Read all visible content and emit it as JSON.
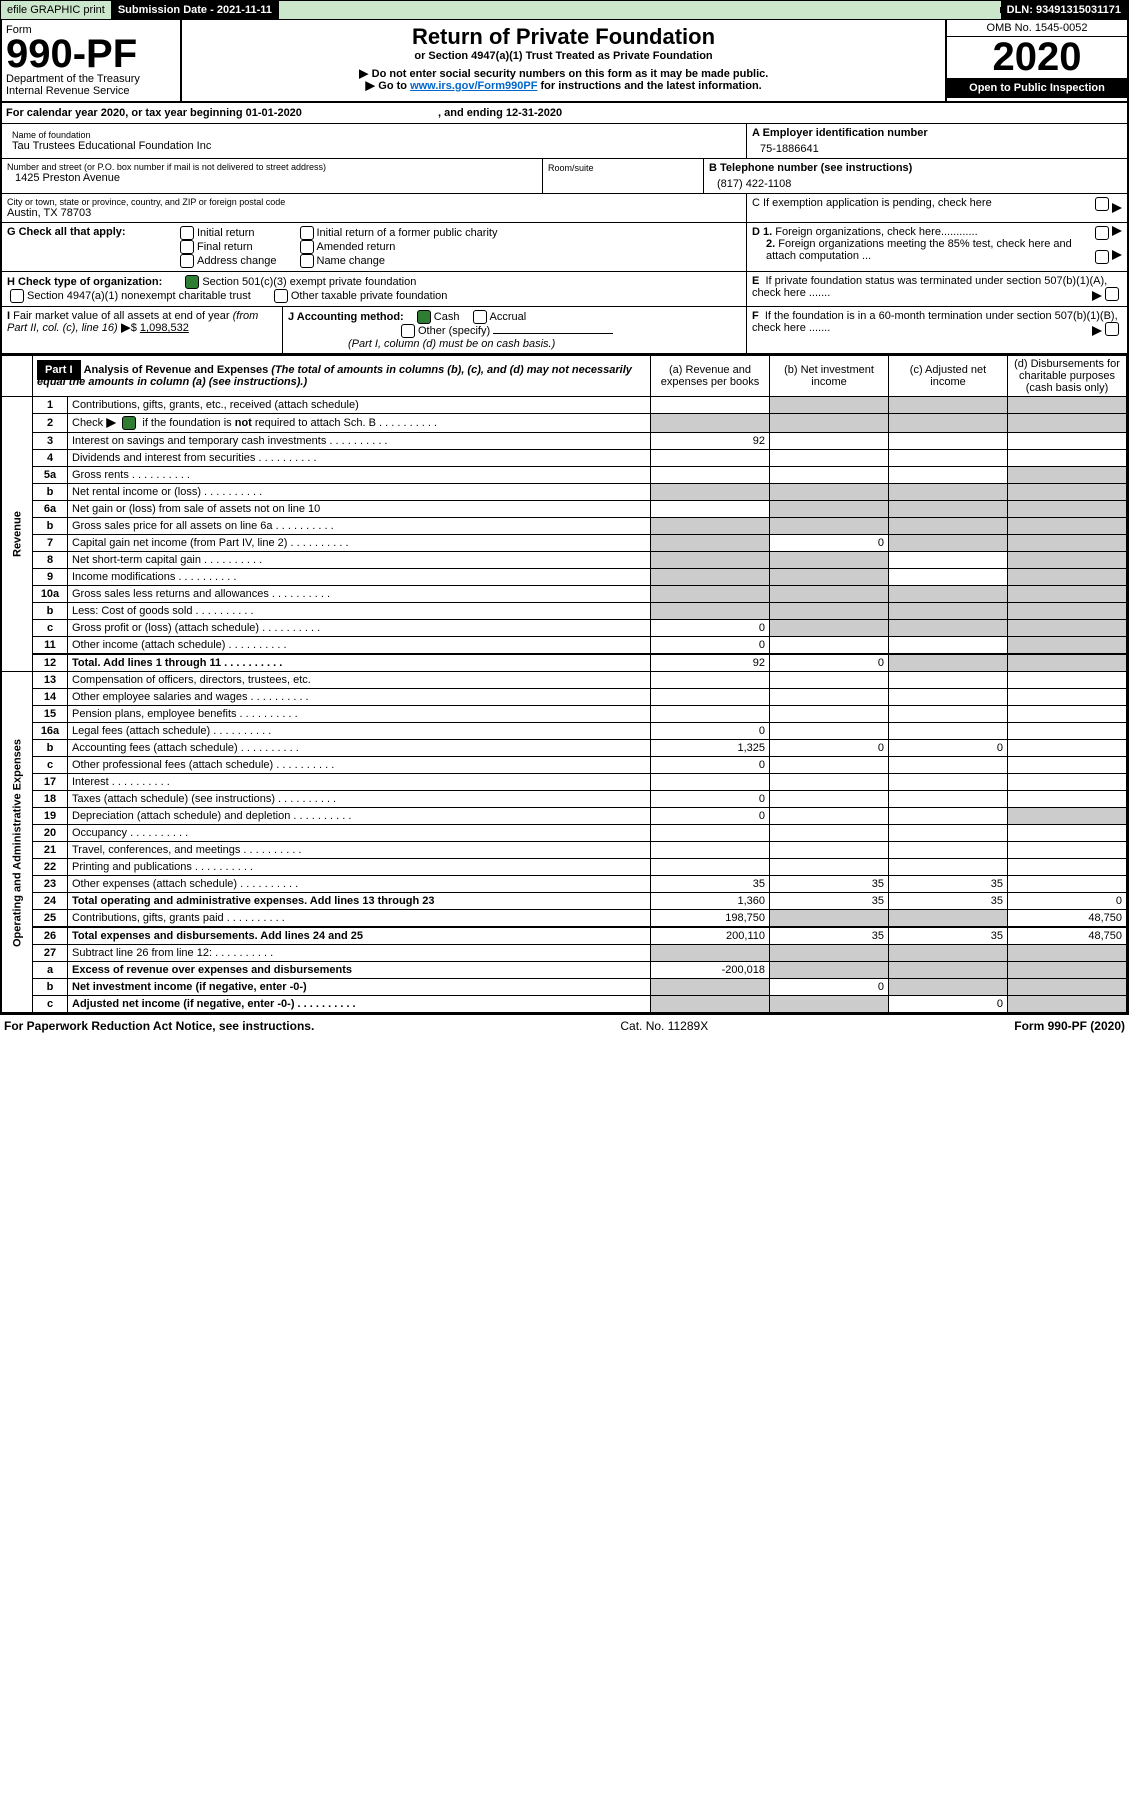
{
  "top": {
    "efile": "efile GRAPHIC print",
    "sub_label": "Submission Date - 2021-11-11",
    "dln_label": "DLN: 93491315031171",
    "omb": "OMB No. 1545-0052",
    "form": "Form",
    "form_no": "990-PF",
    "dept": "Department of the Treasury",
    "irs": "Internal Revenue Service",
    "title": "Return of Private Foundation",
    "subtitle": "or Section 4947(a)(1) Trust Treated as Private Foundation",
    "note1": "Do not enter social security numbers on this form as it may be made public.",
    "note2_a": "Go to ",
    "note2_link": "www.irs.gov/Form990PF",
    "note2_b": " for instructions and the latest information.",
    "year": "2020",
    "open": "Open to Public Inspection"
  },
  "cal": {
    "line_a": "For calendar year 2020, or tax year beginning 01-01-2020",
    "line_b": ", and ending 12-31-2020"
  },
  "id": {
    "name_lbl": "Name of foundation",
    "name": "Tau Trustees Educational Foundation Inc",
    "addr_lbl": "Number and street (or P.O. box number if mail is not delivered to street address)",
    "addr": "1425 Preston Avenue",
    "room_lbl": "Room/suite",
    "city_lbl": "City or town, state or province, country, and ZIP or foreign postal code",
    "city": "Austin, TX  78703",
    "a_lbl": "A Employer identification number",
    "a_val": "75-1886641",
    "b_lbl": "B Telephone number (see instructions)",
    "b_val": "(817) 422-1108",
    "c_lbl": "C If exemption application is pending, check here"
  },
  "g": {
    "lbl": "G Check all that apply:",
    "initial": "Initial return",
    "final": "Final return",
    "addr": "Address change",
    "ipc": "Initial return of a former public charity",
    "amend": "Amended return",
    "namec": "Name change"
  },
  "h": {
    "lbl": "H Check type of organization:",
    "s501": "Section 501(c)(3) exempt private foundation",
    "s4947": "Section 4947(a)(1) nonexempt charitable trust",
    "other": "Other taxable private foundation"
  },
  "d": {
    "d1": "D 1. Foreign organizations, check here............",
    "d2": "2. Foreign organizations meeting the 85% test, check here and attach computation ..."
  },
  "e": "E  If private foundation status was terminated under section 507(b)(1)(A), check here .......",
  "i": {
    "lbl": "I Fair market value of all assets at end of year (from Part II, col. (c), line 16)",
    "val": "1,098,532"
  },
  "j": {
    "lbl": "J Accounting method:",
    "cash": "Cash",
    "accrual": "Accrual",
    "other": "Other (specify)",
    "note": "(Part I, column (d) must be on cash basis.)"
  },
  "f": "F  If the foundation is in a 60-month termination under section 507(b)(1)(B), check here .......",
  "part1": {
    "label": "Part I",
    "title": "Analysis of Revenue and Expenses",
    "note": " (The total of amounts in columns (b), (c), and (d) may not necessarily equal the amounts in column (a) (see instructions).)",
    "cols": {
      "a": "(a)     Revenue and expenses per books",
      "b": "(b)    Net investment income",
      "c": "(c)    Adjusted net income",
      "d": "(d)   Disbursements for charitable purposes (cash basis only)"
    },
    "sections": {
      "rev": "Revenue",
      "op": "Operating and Administrative Expenses"
    },
    "rows": [
      {
        "n": "1",
        "t": "Contributions, gifts, grants, etc., received (attach schedule)"
      },
      {
        "n": "2",
        "t": "Check ▶ ☑ if the foundation is not required to attach Sch. B",
        "html": true
      },
      {
        "n": "3",
        "t": "Interest on savings and temporary cash investments",
        "a": "92"
      },
      {
        "n": "4",
        "t": "Dividends and interest from securities"
      },
      {
        "n": "5a",
        "t": "Gross rents"
      },
      {
        "n": "b",
        "t": "Net rental income or (loss)"
      },
      {
        "n": "6a",
        "t": "Net gain or (loss) from sale of assets not on line 10"
      },
      {
        "n": "b",
        "t": "Gross sales price for all assets on line 6a"
      },
      {
        "n": "7",
        "t": "Capital gain net income (from Part IV, line 2)",
        "b": "0"
      },
      {
        "n": "8",
        "t": "Net short-term capital gain"
      },
      {
        "n": "9",
        "t": "Income modifications"
      },
      {
        "n": "10a",
        "t": "Gross sales less returns and allowances"
      },
      {
        "n": "b",
        "t": "Less: Cost of goods sold"
      },
      {
        "n": "c",
        "t": "Gross profit or (loss) (attach schedule)",
        "a": "0"
      },
      {
        "n": "11",
        "t": "Other income (attach schedule)",
        "a": "0"
      },
      {
        "n": "12",
        "t": "Total. Add lines 1 through 11",
        "bold": true,
        "a": "92",
        "b": "0"
      },
      {
        "n": "13",
        "t": "Compensation of officers, directors, trustees, etc."
      },
      {
        "n": "14",
        "t": "Other employee salaries and wages"
      },
      {
        "n": "15",
        "t": "Pension plans, employee benefits"
      },
      {
        "n": "16a",
        "t": "Legal fees (attach schedule)",
        "a": "0"
      },
      {
        "n": "b",
        "t": "Accounting fees (attach schedule)",
        "a": "1,325",
        "b": "0",
        "c": "0"
      },
      {
        "n": "c",
        "t": "Other professional fees (attach schedule)",
        "a": "0"
      },
      {
        "n": "17",
        "t": "Interest"
      },
      {
        "n": "18",
        "t": "Taxes (attach schedule) (see instructions)",
        "a": "0"
      },
      {
        "n": "19",
        "t": "Depreciation (attach schedule) and depletion",
        "a": "0"
      },
      {
        "n": "20",
        "t": "Occupancy"
      },
      {
        "n": "21",
        "t": "Travel, conferences, and meetings"
      },
      {
        "n": "22",
        "t": "Printing and publications"
      },
      {
        "n": "23",
        "t": "Other expenses (attach schedule)",
        "a": "35",
        "b": "35",
        "c": "35"
      },
      {
        "n": "24",
        "t": "Total operating and administrative expenses. Add lines 13 through 23",
        "bold": true,
        "a": "1,360",
        "b": "35",
        "c": "35",
        "d": "0"
      },
      {
        "n": "25",
        "t": "Contributions, gifts, grants paid",
        "a": "198,750",
        "d": "48,750"
      },
      {
        "n": "26",
        "t": "Total expenses and disbursements. Add lines 24 and 25",
        "bold": true,
        "a": "200,110",
        "b": "35",
        "c": "35",
        "d": "48,750"
      },
      {
        "n": "27",
        "t": "Subtract line 26 from line 12:"
      },
      {
        "n": "a",
        "t": "Excess of revenue over expenses and disbursements",
        "bold": true,
        "a": "-200,018"
      },
      {
        "n": "b",
        "t": "Net investment income (if negative, enter -0-)",
        "bold": true,
        "b": "0"
      },
      {
        "n": "c",
        "t": "Adjusted net income (if negative, enter -0-)",
        "bold": true,
        "c": "0"
      }
    ]
  },
  "foot": {
    "a": "For Paperwork Reduction Act Notice, see instructions.",
    "b": "Cat. No. 11289X",
    "c": "Form 990-PF (2020)"
  }
}
